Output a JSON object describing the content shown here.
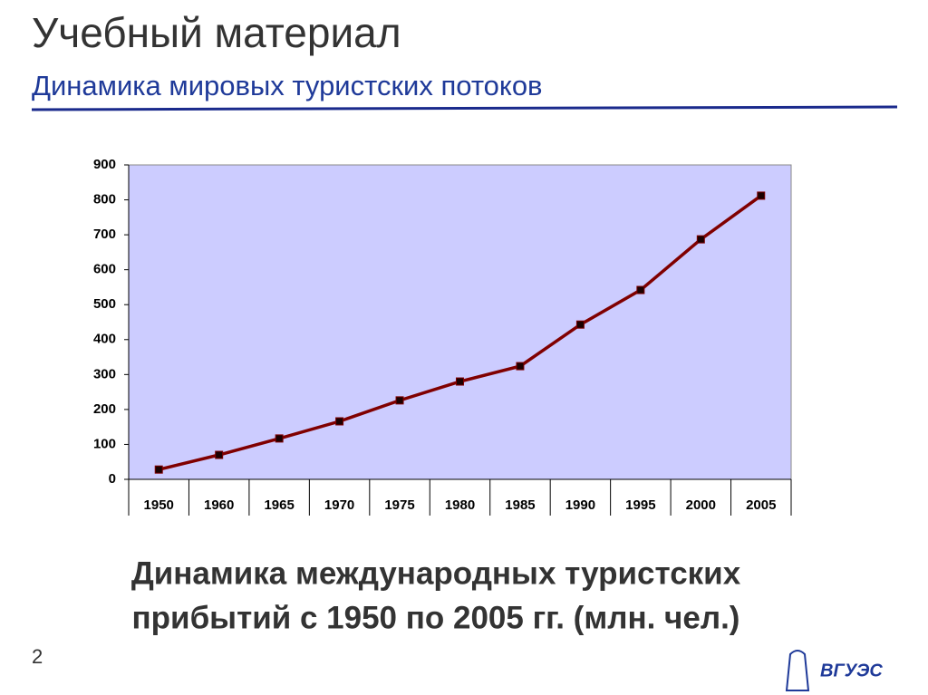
{
  "slide_title": "Учебный материал",
  "slide_subtitle": "Динамика мировых туристских потоков",
  "page_number": "2",
  "logo_text": "ВГУЭС",
  "chart_data": {
    "type": "line",
    "title": [
      "Динамика международных туристских",
      "прибытий с 1950 по 2005 гг. (млн. чел.)"
    ],
    "categories": [
      "1950",
      "1960",
      "1965",
      "1970",
      "1975",
      "1980",
      "1985",
      "1990",
      "1995",
      "2000",
      "2005"
    ],
    "series": [
      {
        "color": "#800000",
        "values": [
          28,
          70,
          117,
          166,
          226,
          280,
          324,
          443,
          542,
          687,
          812
        ]
      }
    ],
    "ylim": [
      0,
      900
    ],
    "yticks": [
      0,
      100,
      200,
      300,
      400,
      500,
      600,
      700,
      800,
      900
    ],
    "grid": false,
    "plot_background": "#ccccff"
  }
}
